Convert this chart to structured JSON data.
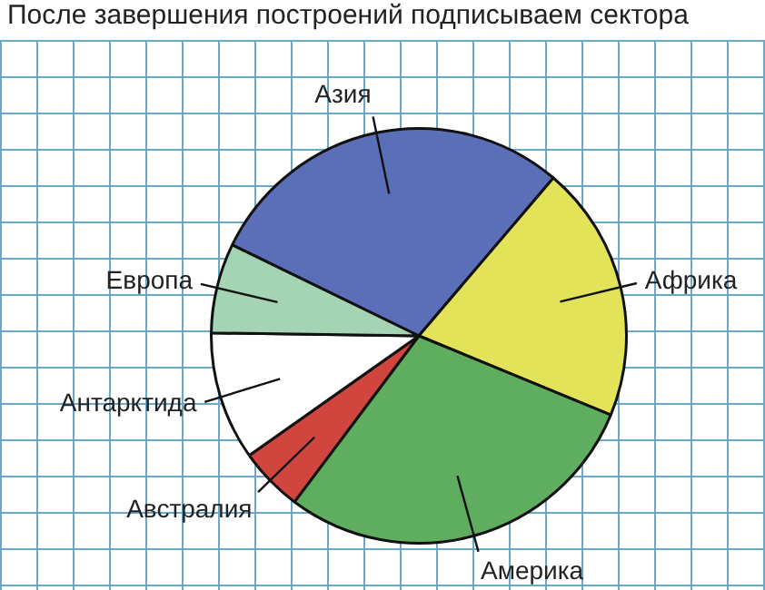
{
  "chart_data": {
    "type": "pie",
    "title": "После завершения построений подписываем сектора",
    "categories": [
      "Азия",
      "Африка",
      "Америка",
      "Австралия",
      "Антарктида",
      "Европа"
    ],
    "values": [
      29,
      20,
      29,
      5,
      10,
      7
    ],
    "colors": [
      "#5b6fb8",
      "#e3e35a",
      "#5fad5f",
      "#d0463f",
      "#ffffff",
      "#a5d4b5"
    ],
    "legend": false
  }
}
